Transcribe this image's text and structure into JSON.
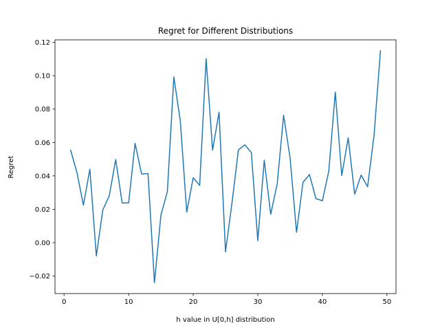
{
  "chart_data": {
    "type": "line",
    "title": "Regret for Different Distributions",
    "xlabel": "h value in U[0,h] distribution",
    "ylabel": "Regret",
    "xlim": [
      -1.4,
      51.4
    ],
    "ylim": [
      -0.0305,
      0.1215
    ],
    "xticks": [
      0,
      10,
      20,
      30,
      40,
      50
    ],
    "xtick_labels": [
      "0",
      "10",
      "20",
      "30",
      "40",
      "50"
    ],
    "yticks": [
      -0.02,
      0.0,
      0.02,
      0.04,
      0.06,
      0.08,
      0.1,
      0.12
    ],
    "ytick_labels": [
      "−0.02",
      "0.00",
      "0.02",
      "0.04",
      "0.06",
      "0.08",
      "0.10",
      "0.12"
    ],
    "grid": false,
    "line_color": "#1f77b4",
    "x": [
      1,
      2,
      3,
      4,
      5,
      6,
      7,
      8,
      9,
      10,
      11,
      12,
      13,
      14,
      15,
      16,
      17,
      18,
      19,
      20,
      21,
      22,
      23,
      24,
      25,
      26,
      27,
      28,
      29,
      30,
      31,
      32,
      33,
      34,
      35,
      36,
      37,
      38,
      39,
      40,
      41,
      42,
      43,
      44,
      45,
      46,
      47,
      48,
      49
    ],
    "values": [
      0.0557,
      0.042,
      0.0225,
      0.044,
      -0.008,
      0.0196,
      0.028,
      0.0498,
      0.0238,
      0.0238,
      0.0595,
      0.0412,
      0.0414,
      -0.024,
      0.0165,
      0.0307,
      0.0993,
      0.073,
      0.0183,
      0.0389,
      0.0343,
      0.1102,
      0.0555,
      0.0781,
      -0.0055,
      0.0237,
      0.0556,
      0.0586,
      0.054,
      0.0012,
      0.0494,
      0.017,
      0.0351,
      0.0763,
      0.0508,
      0.0062,
      0.0362,
      0.0408,
      0.0264,
      0.0251,
      0.043,
      0.0902,
      0.0402,
      0.0628,
      0.029,
      0.0405,
      0.0335,
      0.0643,
      0.1153
    ]
  }
}
